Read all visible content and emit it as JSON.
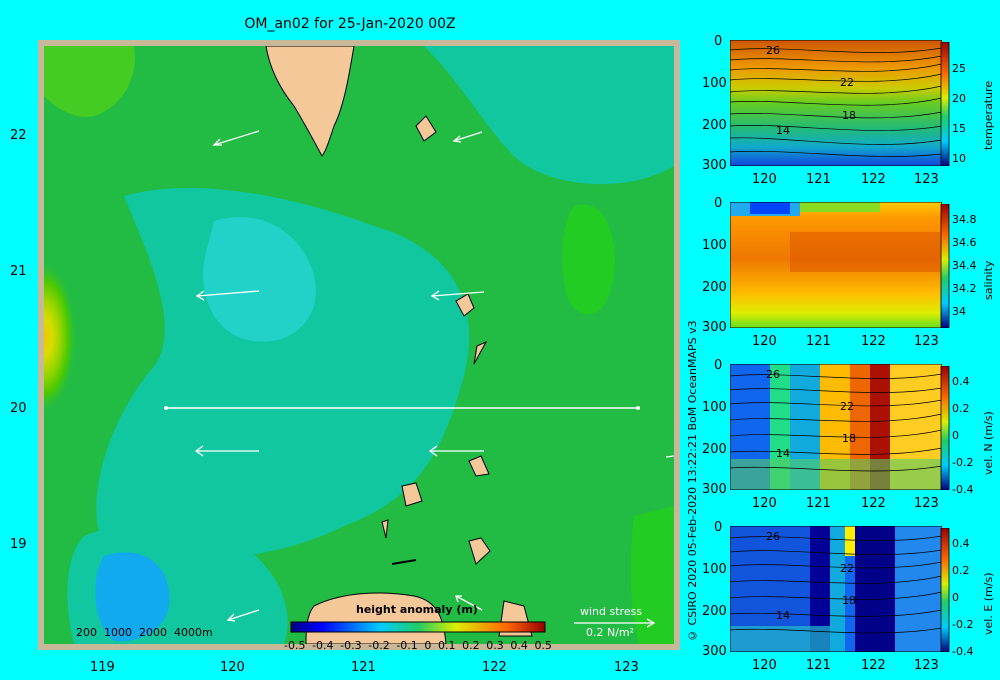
{
  "title": "OM_an02 for 25-Jan-2020 00Z",
  "credit": "© CSIRO 2020  05-Feb-2020 13:22:21 BoM OceanMAPS v3",
  "map": {
    "lat_ticks": [
      "22",
      "21",
      "20",
      "19"
    ],
    "lon_ticks": [
      "119",
      "120",
      "121",
      "122",
      "123"
    ],
    "depth_legend": "200  1000  2000  4000m",
    "colorbar_title": "height anomaly  (m)",
    "colorbar_ticks": [
      "-0.5",
      "-0.4",
      "-0.3",
      "-0.2",
      "-0.1",
      "0",
      "0.1",
      "0.2",
      "0.3",
      "0.4",
      "0.5"
    ],
    "wind_stress_label": "wind stress",
    "wind_stress_units": "0.2 N/m²"
  },
  "sections": [
    {
      "ylabel": "temperature",
      "cticks": [
        "25",
        "20",
        "15",
        "10"
      ],
      "contours": [
        "26",
        "22",
        "18",
        "14"
      ]
    },
    {
      "ylabel": "salinity",
      "cticks": [
        "34.8",
        "34.6",
        "34.4",
        "34.2",
        "34"
      ],
      "contours": []
    },
    {
      "ylabel": "vel. N  (m/s)",
      "cticks": [
        "0.4",
        "0.2",
        "0",
        "-0.2",
        "-0.4"
      ],
      "contours": [
        "26",
        "22",
        "18",
        "14"
      ]
    },
    {
      "ylabel": "vel. E  (m/s)",
      "cticks": [
        "0.4",
        "0.2",
        "0",
        "-0.2",
        "-0.4"
      ],
      "contours": [
        "26",
        "22",
        "18",
        "14"
      ]
    }
  ],
  "section_axes": {
    "depth_ticks": [
      "0",
      "100",
      "200",
      "300"
    ],
    "lon_ticks": [
      "120",
      "121",
      "122",
      "123"
    ]
  }
}
